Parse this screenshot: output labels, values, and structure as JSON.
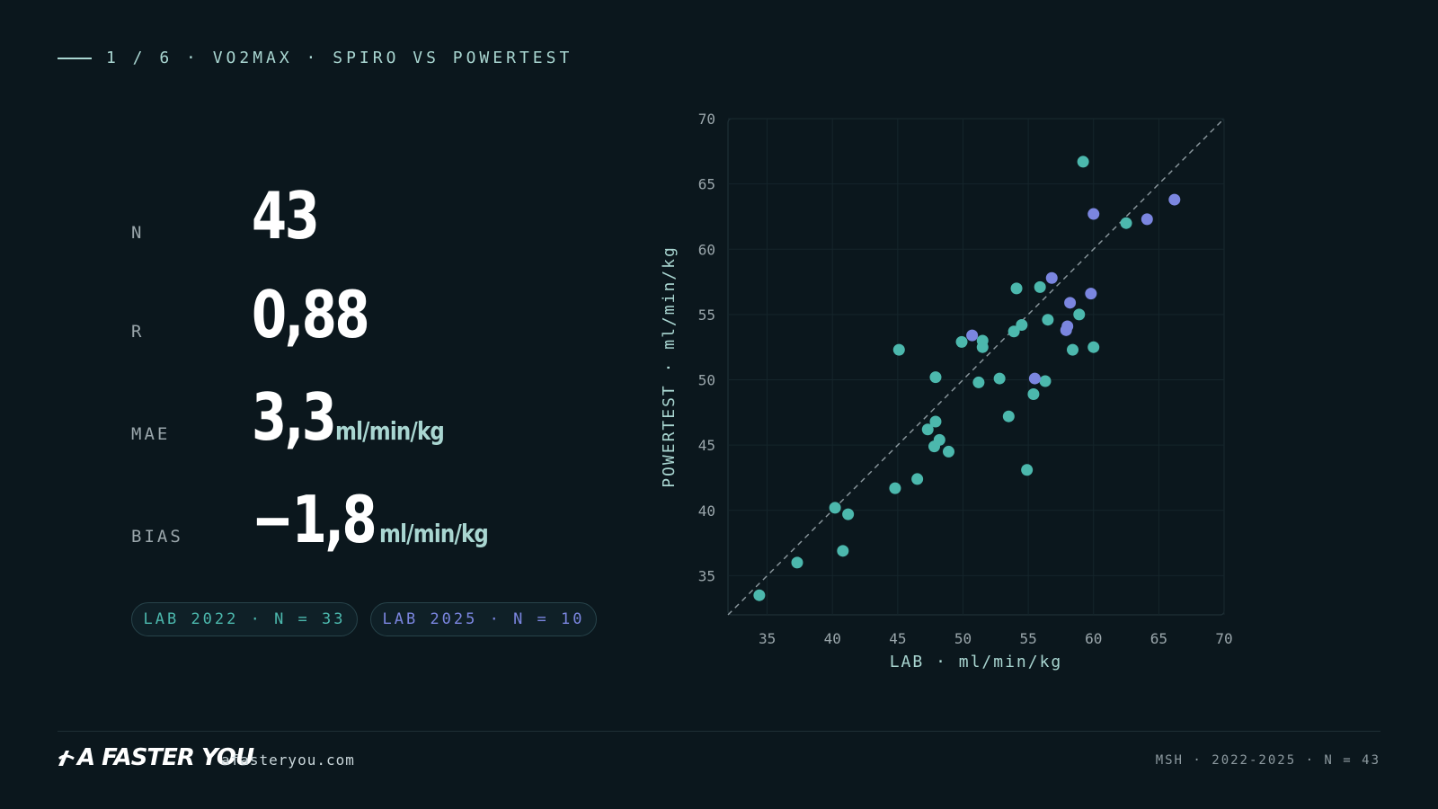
{
  "header": {
    "eyebrow": "1 / 6 · VO2MAX · SPIRO VS POWERTEST"
  },
  "stats": [
    {
      "label": "N",
      "value": "43",
      "unit": ""
    },
    {
      "label": "R",
      "value": "0,88",
      "unit": ""
    },
    {
      "label": "MAE",
      "value": "3,3",
      "unit": "ml/min/kg"
    },
    {
      "label": "BIAS",
      "value": "−1,8",
      "unit": "ml/min/kg"
    }
  ],
  "legend": {
    "lab2022": {
      "label": "LAB 2022 · N = 33",
      "color": "#4cb8ad"
    },
    "lab2025": {
      "label": "LAB 2025 · N = 10",
      "color": "#7b86e0"
    }
  },
  "footer": {
    "brand": "A FASTER YOU",
    "site": "afasteryou.com",
    "meta": "MSH · 2022-2025 · N = 43"
  },
  "colors": {
    "background": "#0b171d",
    "accent": "#a9d6d1",
    "series_2022": "#4cb8ad",
    "series_2025": "#7b86e0"
  },
  "chart_data": {
    "type": "scatter",
    "xlabel": "LAB · ml/min/kg",
    "ylabel": "POWERTEST · ml/min/kg",
    "xlim": [
      32,
      70
    ],
    "ylim": [
      32,
      70
    ],
    "xticks": [
      35,
      40,
      45,
      50,
      55,
      60,
      65,
      70
    ],
    "yticks": [
      35,
      40,
      45,
      50,
      55,
      60,
      65,
      70
    ],
    "grid": true,
    "identity_line": true,
    "series": [
      {
        "name": "LAB 2022 · N = 33",
        "color": "#4cb8ad",
        "points": [
          [
            34.4,
            33.5
          ],
          [
            37.3,
            36.0
          ],
          [
            40.2,
            40.2
          ],
          [
            40.8,
            36.9
          ],
          [
            41.2,
            39.7
          ],
          [
            44.8,
            41.7
          ],
          [
            45.1,
            52.3
          ],
          [
            46.5,
            42.4
          ],
          [
            47.3,
            46.2
          ],
          [
            47.8,
            44.9
          ],
          [
            47.9,
            46.8
          ],
          [
            47.9,
            50.2
          ],
          [
            48.2,
            45.4
          ],
          [
            48.9,
            44.5
          ],
          [
            49.9,
            52.9
          ],
          [
            51.2,
            49.8
          ],
          [
            51.5,
            53.0
          ],
          [
            51.5,
            52.5
          ],
          [
            52.8,
            50.1
          ],
          [
            53.5,
            47.2
          ],
          [
            53.9,
            53.7
          ],
          [
            54.1,
            57.0
          ],
          [
            54.5,
            54.2
          ],
          [
            54.9,
            43.1
          ],
          [
            55.4,
            48.9
          ],
          [
            55.9,
            57.1
          ],
          [
            56.3,
            49.9
          ],
          [
            56.5,
            54.6
          ],
          [
            58.4,
            52.3
          ],
          [
            58.9,
            55.0
          ],
          [
            59.2,
            66.7
          ],
          [
            60.0,
            52.5
          ],
          [
            62.5,
            62.0
          ]
        ]
      },
      {
        "name": "LAB 2025 · N = 10",
        "color": "#7b86e0",
        "points": [
          [
            50.7,
            53.4
          ],
          [
            55.5,
            50.1
          ],
          [
            56.8,
            57.8
          ],
          [
            57.9,
            53.8
          ],
          [
            58.0,
            54.1
          ],
          [
            58.2,
            55.9
          ],
          [
            59.8,
            56.6
          ],
          [
            60.0,
            62.7
          ],
          [
            64.1,
            62.3
          ],
          [
            66.2,
            63.8
          ]
        ]
      }
    ]
  }
}
